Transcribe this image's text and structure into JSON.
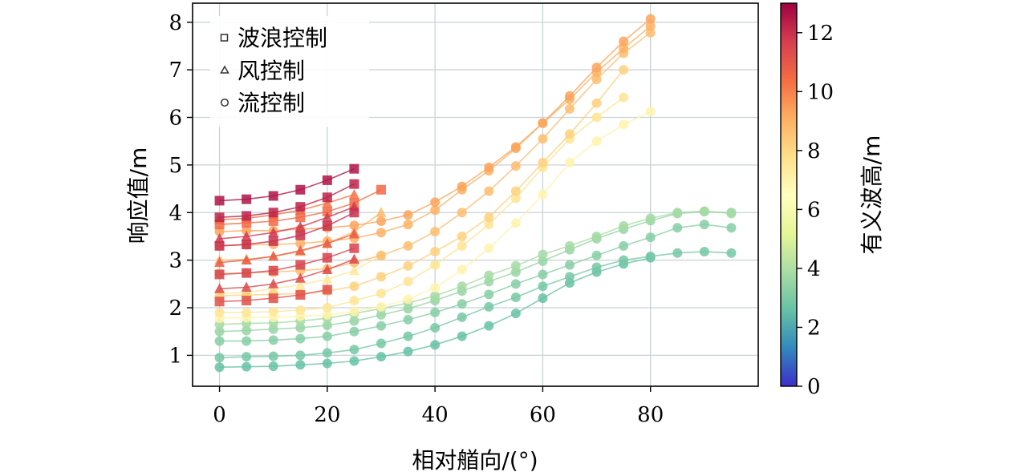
{
  "chart_data": {
    "type": "scatter",
    "xlabel": "相对艏向/(°)",
    "ylabel": "响应值/m",
    "xlim": [
      -5,
      100
    ],
    "ylim": [
      0.35,
      8.4
    ],
    "xticks": [
      0,
      20,
      40,
      60,
      80
    ],
    "yticks": [
      1,
      2,
      3,
      4,
      5,
      6,
      7,
      8
    ],
    "grid": true,
    "legend": {
      "position": "top-left",
      "items": [
        {
          "marker": "square",
          "label": "波浪控制"
        },
        {
          "marker": "triangle",
          "label": "风控制"
        },
        {
          "marker": "circle",
          "label": "流控制"
        }
      ]
    },
    "colorbar": {
      "label": "有义波高/m",
      "range": [
        0,
        13
      ],
      "ticks": [
        0,
        2,
        4,
        6,
        8,
        10,
        12
      ],
      "colormap": [
        "#3b2fc9",
        "#3288bd",
        "#66c2a5",
        "#abdda4",
        "#e6f598",
        "#ffffbf",
        "#fee08b",
        "#fdae61",
        "#f46d43",
        "#d53e4f",
        "#9e0142"
      ]
    },
    "series": [
      {
        "control": "wave",
        "hs": 12.6,
        "x": [
          0,
          5,
          10,
          15,
          20,
          25
        ],
        "y": [
          4.25,
          4.28,
          4.35,
          4.48,
          4.68,
          4.92
        ]
      },
      {
        "control": "wave",
        "hs": 12.3,
        "x": [
          0,
          5,
          10,
          15,
          20,
          25
        ],
        "y": [
          3.9,
          3.93,
          4.0,
          4.12,
          4.32,
          4.6
        ]
      },
      {
        "control": "wave",
        "hs": 12.0,
        "x": [
          0,
          5,
          10,
          15,
          20,
          25
        ],
        "y": [
          3.3,
          3.33,
          3.4,
          3.52,
          3.72,
          4.0
        ]
      },
      {
        "control": "wave",
        "hs": 11.6,
        "x": [
          0,
          5,
          10,
          15,
          20,
          25
        ],
        "y": [
          2.7,
          2.73,
          2.78,
          2.9,
          3.05,
          3.25
        ]
      },
      {
        "control": "wave",
        "hs": 11.2,
        "x": [
          0,
          5,
          10,
          15,
          20
        ],
        "y": [
          2.13,
          2.15,
          2.2,
          2.27,
          2.38
        ]
      },
      {
        "control": "wind",
        "hs": 11.8,
        "x": [
          0,
          5,
          10,
          15,
          20,
          25
        ],
        "y": [
          3.45,
          3.5,
          3.58,
          3.7,
          3.9,
          4.12
        ]
      },
      {
        "control": "wind",
        "hs": 11.4,
        "x": [
          0,
          5,
          10,
          15,
          20,
          25
        ],
        "y": [
          2.4,
          2.43,
          2.5,
          2.62,
          2.8,
          3.02
        ]
      },
      {
        "control": "wind",
        "hs": 10.9,
        "x": [
          0,
          5,
          10,
          15,
          20,
          25
        ],
        "y": [
          2.95,
          3.0,
          3.08,
          3.2,
          3.35,
          3.55
        ]
      },
      {
        "control": "wave",
        "hs": 10.5,
        "x": [
          0,
          5,
          10,
          15,
          20,
          25,
          30
        ],
        "y": [
          3.75,
          3.78,
          3.82,
          3.9,
          4.02,
          4.2,
          4.48
        ]
      },
      {
        "control": "wind",
        "hs": 10.3,
        "x": [
          0,
          5,
          10,
          15,
          20,
          25
        ],
        "y": [
          3.85,
          3.88,
          3.95,
          4.05,
          4.2,
          4.38
        ]
      },
      {
        "control": "wind",
        "hs": 8.8,
        "x": [
          0,
          5,
          10,
          15,
          20,
          25,
          30
        ],
        "y": [
          3.0,
          3.02,
          3.08,
          3.18,
          3.35,
          3.6,
          4.0
        ]
      },
      {
        "control": "wind",
        "hs": 7.5,
        "x": [
          0,
          5,
          10,
          15,
          20,
          25,
          30
        ],
        "y": [
          2.3,
          2.32,
          2.4,
          2.48,
          2.6,
          2.78,
          3.1
        ]
      },
      {
        "control": "current",
        "hs": 9.3,
        "x": [
          0,
          5,
          10,
          15,
          20,
          25,
          30,
          35,
          40,
          45,
          50,
          55,
          60,
          65,
          70,
          75,
          80
        ],
        "y": [
          3.6,
          3.62,
          3.62,
          3.65,
          3.68,
          3.73,
          3.82,
          3.95,
          4.22,
          4.55,
          4.95,
          5.38,
          5.88,
          6.45,
          7.05,
          7.6,
          8.07
        ]
      },
      {
        "control": "current",
        "hs": 9.0,
        "x": [
          0,
          5,
          10,
          15,
          20,
          25,
          30,
          35,
          40,
          45,
          50,
          55,
          60,
          65,
          70,
          75,
          80
        ],
        "y": [
          3.3,
          3.32,
          3.33,
          3.35,
          3.4,
          3.46,
          3.58,
          3.75,
          4.05,
          4.48,
          4.88,
          5.35,
          5.88,
          6.38,
          6.95,
          7.45,
          7.92
        ]
      },
      {
        "control": "current",
        "hs": 8.7,
        "x": [
          0,
          5,
          10,
          15,
          20,
          25,
          30,
          35,
          40,
          45,
          50,
          55,
          60,
          65,
          70,
          75,
          80
        ],
        "y": [
          2.72,
          2.73,
          2.75,
          2.78,
          2.82,
          2.95,
          3.1,
          3.3,
          3.6,
          4.0,
          4.45,
          4.98,
          5.55,
          6.18,
          6.8,
          7.35,
          7.78
        ]
      },
      {
        "control": "current",
        "hs": 8.2,
        "x": [
          0,
          5,
          10,
          15,
          20,
          25,
          30,
          35,
          40,
          45,
          50,
          55,
          60,
          65,
          70,
          75
        ],
        "y": [
          2.25,
          2.27,
          2.28,
          2.3,
          2.35,
          2.45,
          2.65,
          2.88,
          3.18,
          3.5,
          3.9,
          4.45,
          5.05,
          5.65,
          6.3,
          7.0
        ]
      },
      {
        "control": "current",
        "hs": 7.6,
        "x": [
          0,
          5,
          10,
          15,
          20,
          25,
          30,
          35,
          40,
          45,
          50,
          55,
          60,
          65,
          70,
          75
        ],
        "y": [
          1.9,
          1.9,
          1.92,
          1.95,
          2.0,
          2.15,
          2.3,
          2.55,
          2.9,
          3.3,
          3.75,
          4.3,
          4.95,
          5.55,
          6.0,
          6.42
        ]
      },
      {
        "control": "current",
        "hs": 7.0,
        "x": [
          0,
          5,
          10,
          15,
          20,
          25,
          30,
          35,
          40,
          45,
          50,
          55,
          60,
          65,
          70,
          75,
          80
        ],
        "y": [
          1.78,
          1.79,
          1.8,
          1.82,
          1.85,
          1.92,
          2.02,
          2.18,
          2.42,
          2.8,
          3.25,
          3.78,
          4.38,
          5.05,
          5.5,
          5.85,
          6.12
        ]
      },
      {
        "control": "current",
        "hs": 3.8,
        "x": [
          0,
          5,
          10,
          15,
          20,
          25,
          30,
          35,
          40,
          45,
          50,
          55,
          60,
          65,
          70,
          75,
          80,
          85,
          90,
          95
        ],
        "y": [
          1.65,
          1.67,
          1.68,
          1.72,
          1.78,
          1.88,
          1.98,
          2.1,
          2.25,
          2.45,
          2.68,
          2.88,
          3.12,
          3.3,
          3.5,
          3.72,
          3.88,
          4.0,
          4.03,
          3.98
        ]
      },
      {
        "control": "current",
        "hs": 3.5,
        "x": [
          0,
          5,
          10,
          15,
          20,
          25,
          30,
          35,
          40,
          45,
          50,
          55,
          60,
          65,
          70,
          75,
          80,
          85,
          90,
          95
        ],
        "y": [
          1.5,
          1.52,
          1.55,
          1.58,
          1.63,
          1.72,
          1.85,
          1.98,
          2.15,
          2.35,
          2.55,
          2.75,
          2.98,
          3.22,
          3.45,
          3.65,
          3.83,
          3.98,
          4.02,
          4.0
        ]
      },
      {
        "control": "current",
        "hs": 3.2,
        "x": [
          0,
          5,
          10,
          15,
          20,
          25,
          30,
          35,
          40,
          45,
          50,
          55,
          60,
          65,
          70,
          75,
          80,
          85,
          90,
          95
        ],
        "y": [
          1.3,
          1.3,
          1.32,
          1.35,
          1.4,
          1.5,
          1.62,
          1.75,
          1.9,
          2.08,
          2.28,
          2.5,
          2.7,
          2.9,
          3.1,
          3.3,
          3.48,
          3.68,
          3.75,
          3.68
        ]
      },
      {
        "control": "current",
        "hs": 2.9,
        "x": [
          0,
          5,
          10,
          15,
          20,
          25,
          30,
          35,
          40,
          45,
          50,
          55,
          60,
          65,
          70,
          75,
          80,
          85,
          90,
          95
        ],
        "y": [
          0.95,
          0.97,
          0.98,
          1.0,
          1.05,
          1.12,
          1.25,
          1.4,
          1.58,
          1.8,
          2.02,
          2.22,
          2.45,
          2.65,
          2.85,
          3.0,
          3.08,
          3.15,
          3.18,
          3.15
        ]
      },
      {
        "control": "current",
        "hs": 2.6,
        "x": [
          0,
          5,
          10,
          15,
          20,
          25,
          30,
          35,
          40,
          45,
          50,
          55,
          60,
          65,
          70,
          75,
          80
        ],
        "y": [
          0.75,
          0.76,
          0.77,
          0.8,
          0.83,
          0.88,
          0.97,
          1.08,
          1.22,
          1.4,
          1.62,
          1.88,
          2.2,
          2.52,
          2.75,
          2.92,
          3.05
        ]
      }
    ]
  }
}
